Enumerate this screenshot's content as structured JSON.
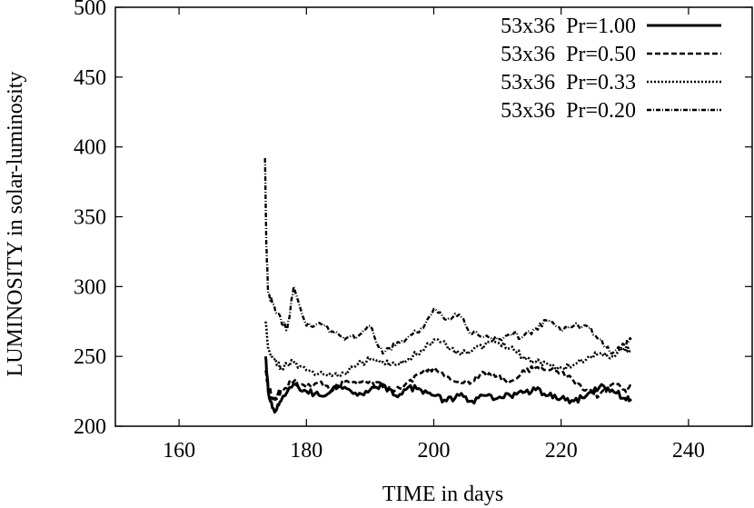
{
  "chart_data": {
    "type": "line",
    "title": "",
    "xlabel": "TIME in days",
    "ylabel": "LUMINOSITY in solar-luminosity",
    "xlim": [
      150,
      250
    ],
    "ylim": [
      200,
      500
    ],
    "xticks": [
      160,
      180,
      200,
      220,
      240
    ],
    "yticks": [
      200,
      250,
      300,
      350,
      400,
      450,
      500
    ],
    "legend_position": "top-right",
    "grid": false,
    "series": [
      {
        "name": "53x36  Pr=1.00",
        "style": "solid",
        "x": [
          173.6,
          174,
          175,
          176,
          178,
          180,
          182,
          184,
          186,
          188,
          190,
          192,
          194,
          196,
          198,
          200,
          202,
          204,
          206,
          208,
          210,
          212,
          214,
          216,
          218,
          220,
          222,
          224,
          226,
          228,
          230,
          231
        ],
        "y": [
          250,
          225,
          210,
          218,
          230,
          225,
          222,
          226,
          228,
          222,
          226,
          230,
          222,
          228,
          226,
          222,
          218,
          222,
          218,
          222,
          220,
          222,
          224,
          226,
          222,
          220,
          218,
          222,
          228,
          226,
          220,
          218
        ]
      },
      {
        "name": "53x36  Pr=0.50",
        "style": "dashed",
        "x": [
          173.6,
          174,
          175,
          176,
          178,
          180,
          182,
          184,
          186,
          188,
          190,
          192,
          194,
          196,
          198,
          200,
          202,
          204,
          206,
          208,
          210,
          212,
          214,
          216,
          218,
          220,
          222,
          224,
          226,
          228,
          230,
          231
        ],
        "y": [
          240,
          228,
          218,
          226,
          232,
          228,
          232,
          225,
          232,
          230,
          232,
          228,
          226,
          232,
          238,
          242,
          236,
          232,
          232,
          238,
          236,
          232,
          240,
          242,
          240,
          238,
          232,
          226,
          222,
          230,
          226,
          228
        ]
      },
      {
        "name": "53x36  Pr=0.33",
        "style": "dotted",
        "x": [
          173.6,
          174,
          175,
          176,
          178,
          180,
          182,
          184,
          186,
          188,
          190,
          192,
          194,
          196,
          198,
          200,
          202,
          204,
          206,
          208,
          210,
          212,
          214,
          216,
          218,
          220,
          222,
          224,
          226,
          228,
          230,
          231
        ],
        "y": [
          275,
          255,
          248,
          242,
          246,
          240,
          238,
          236,
          238,
          244,
          248,
          246,
          244,
          248,
          254,
          262,
          258,
          252,
          254,
          258,
          260,
          256,
          250,
          246,
          244,
          242,
          244,
          248,
          252,
          250,
          256,
          254
        ]
      },
      {
        "name": "53x36  Pr=0.20",
        "style": "dash-dot",
        "x": [
          173.5,
          173.7,
          174,
          175,
          176,
          177,
          178,
          180,
          182,
          184,
          186,
          188,
          190,
          192,
          194,
          196,
          198,
          200,
          202,
          204,
          206,
          208,
          210,
          212,
          214,
          216,
          218,
          220,
          222,
          224,
          226,
          228,
          230,
          231
        ],
        "y": [
          392,
          330,
          295,
          285,
          276,
          270,
          300,
          272,
          274,
          268,
          262,
          264,
          272,
          252,
          258,
          264,
          270,
          284,
          276,
          280,
          266,
          264,
          262,
          266,
          264,
          270,
          276,
          268,
          272,
          272,
          262,
          252,
          258,
          262
        ]
      }
    ]
  }
}
